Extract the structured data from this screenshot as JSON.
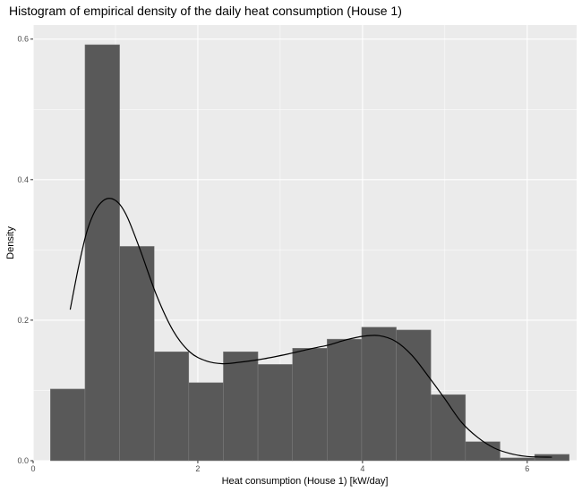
{
  "chart_data": {
    "type": "bar",
    "title": "Histogram of empirical density of the daily heat consumption (House 1)",
    "xlabel": "Heat consumption (House 1) [kW/day]",
    "ylabel": "Density",
    "xlim": [
      0,
      6.6
    ],
    "ylim": [
      0,
      0.62
    ],
    "x_ticks": [
      0,
      2,
      4,
      6
    ],
    "y_ticks": [
      0.0,
      0.2,
      0.4,
      0.6
    ],
    "x_tick_labels": [
      "0",
      "2",
      "4",
      "6"
    ],
    "y_tick_labels": [
      "0.0",
      "0.2",
      "0.4",
      "0.6"
    ],
    "grid": true,
    "bins": [
      {
        "x0": 0.21,
        "x1": 0.63,
        "density": 0.102
      },
      {
        "x0": 0.63,
        "x1": 1.05,
        "density": 0.592
      },
      {
        "x0": 1.05,
        "x1": 1.47,
        "density": 0.305
      },
      {
        "x0": 1.47,
        "x1": 1.89,
        "density": 0.155
      },
      {
        "x0": 1.89,
        "x1": 2.31,
        "density": 0.111
      },
      {
        "x0": 2.31,
        "x1": 2.73,
        "density": 0.155
      },
      {
        "x0": 2.73,
        "x1": 3.15,
        "density": 0.137
      },
      {
        "x0": 3.15,
        "x1": 3.57,
        "density": 0.16
      },
      {
        "x0": 3.57,
        "x1": 3.99,
        "density": 0.173
      },
      {
        "x0": 3.99,
        "x1": 4.41,
        "density": 0.19
      },
      {
        "x0": 4.41,
        "x1": 4.83,
        "density": 0.186
      },
      {
        "x0": 4.83,
        "x1": 5.25,
        "density": 0.094
      },
      {
        "x0": 5.25,
        "x1": 5.67,
        "density": 0.027
      },
      {
        "x0": 5.67,
        "x1": 6.09,
        "density": 0.004
      },
      {
        "x0": 6.09,
        "x1": 6.51,
        "density": 0.009
      }
    ],
    "density_curve": {
      "x": [
        0.45,
        0.55,
        0.65,
        0.75,
        0.85,
        0.95,
        1.05,
        1.15,
        1.3,
        1.5,
        1.7,
        1.9,
        2.1,
        2.3,
        2.5,
        2.8,
        3.1,
        3.4,
        3.6,
        3.8,
        4.0,
        4.2,
        4.4,
        4.6,
        4.8,
        5.0,
        5.2,
        5.4,
        5.6,
        5.8,
        6.0,
        6.3
      ],
      "y": [
        0.215,
        0.275,
        0.325,
        0.355,
        0.37,
        0.373,
        0.365,
        0.345,
        0.3,
        0.235,
        0.185,
        0.155,
        0.142,
        0.138,
        0.14,
        0.145,
        0.152,
        0.16,
        0.165,
        0.172,
        0.177,
        0.178,
        0.17,
        0.15,
        0.12,
        0.088,
        0.055,
        0.033,
        0.018,
        0.01,
        0.006,
        0.005
      ]
    },
    "colors": {
      "bar_fill": "#595959",
      "bar_outline": "#7f7f7f",
      "panel_background": "#ebebeb",
      "grid_major": "#ffffff",
      "curve": "#000000"
    }
  }
}
